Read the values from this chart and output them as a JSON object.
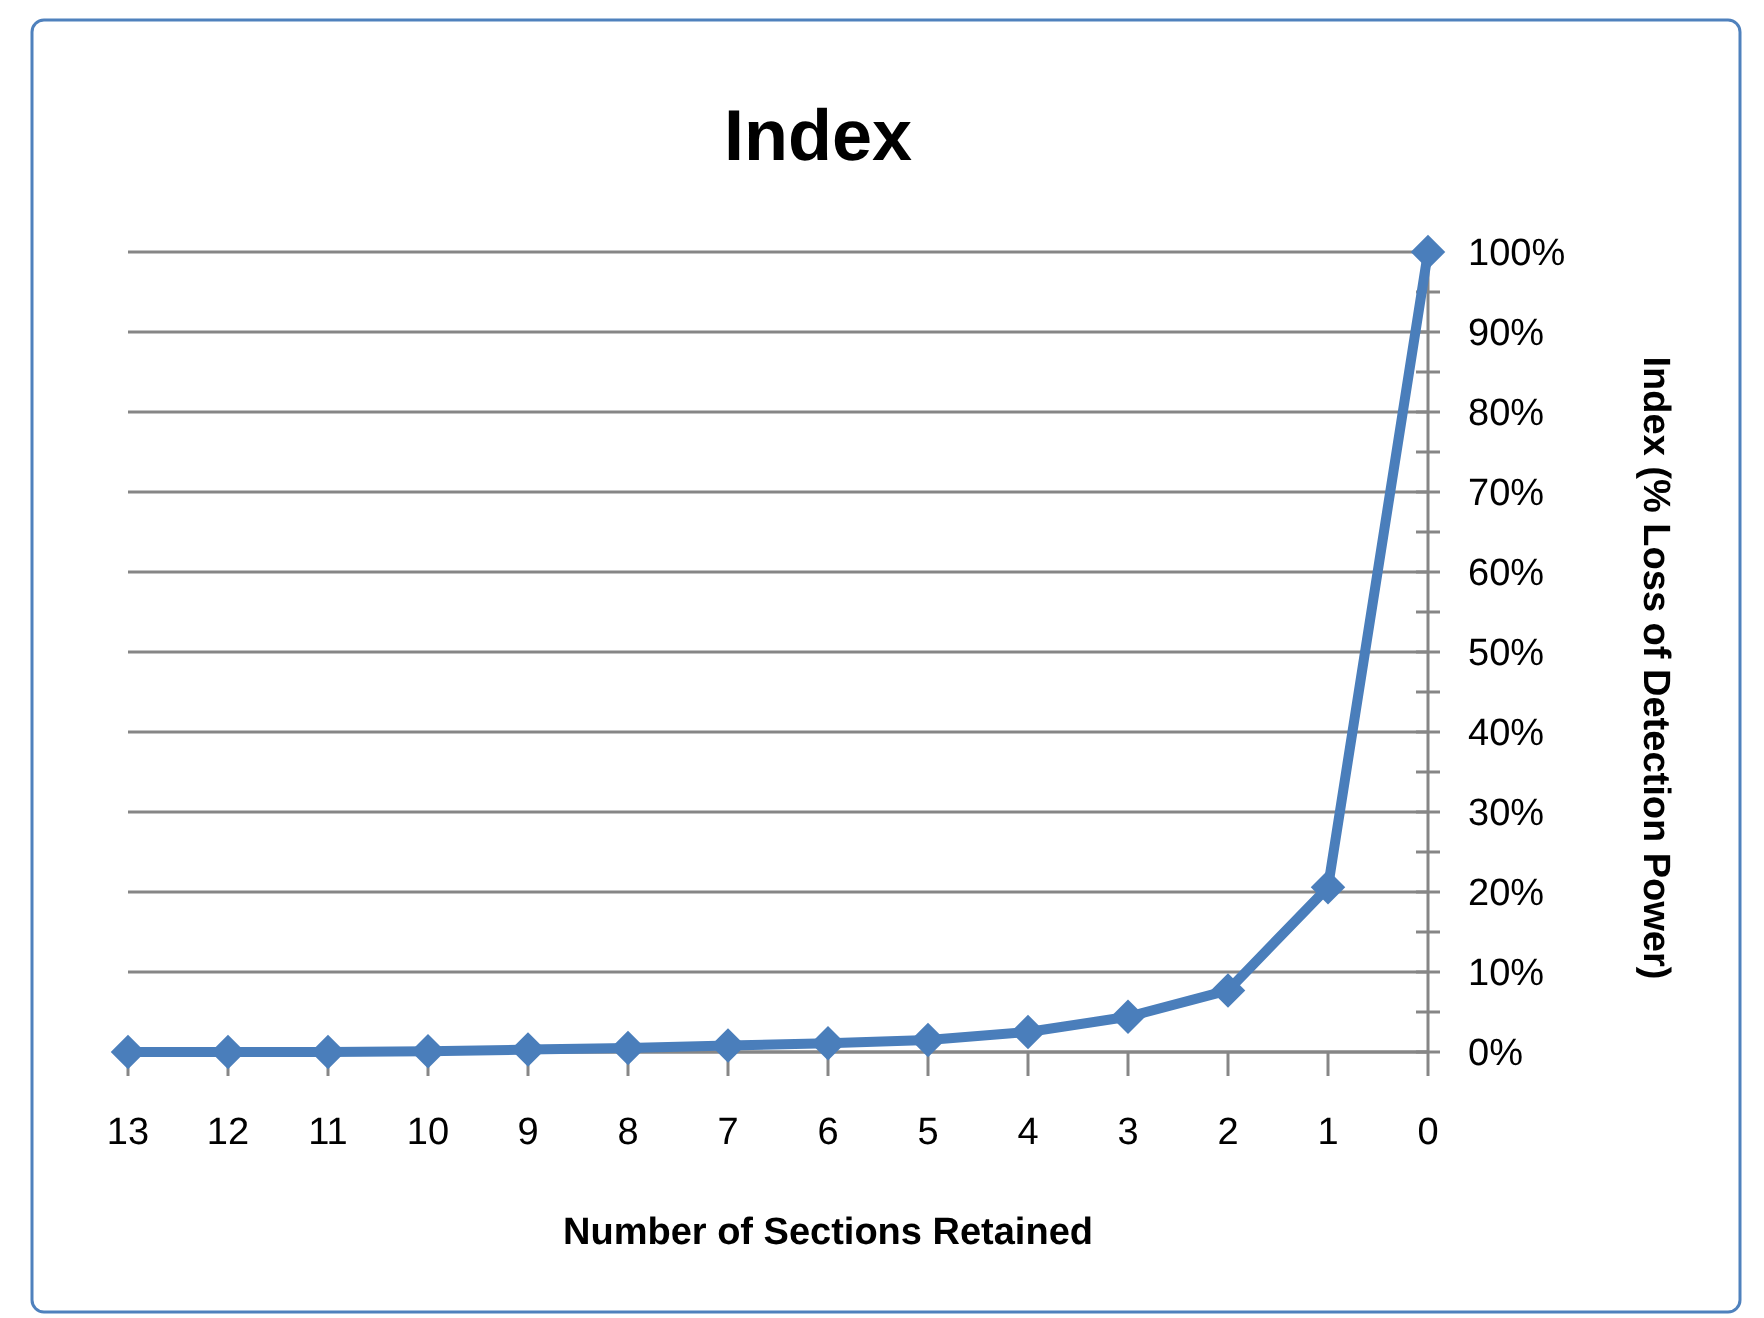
{
  "chart_data": {
    "type": "line",
    "title": "Index",
    "xlabel": "Number of Sections Retained",
    "ylabel": "Index (% Loss of Detection Power)",
    "categories": [
      "13",
      "12",
      "11",
      "10",
      "9",
      "8",
      "7",
      "6",
      "5",
      "4",
      "3",
      "2",
      "1",
      "0"
    ],
    "series": [
      {
        "color": "#4a7ebb",
        "values": [
          0,
          0,
          0,
          0.1,
          0.3,
          0.5,
          0.8,
          1.1,
          1.5,
          2.5,
          4.4,
          7.7,
          20.6,
          100
        ]
      }
    ],
    "ylim": [
      0,
      100
    ],
    "yticks": [
      {
        "value": 0,
        "label": "0%"
      },
      {
        "value": 5,
        "label": null
      },
      {
        "value": 10,
        "label": "10%"
      },
      {
        "value": 15,
        "label": null
      },
      {
        "value": 20,
        "label": "20%"
      },
      {
        "value": 25,
        "label": null
      },
      {
        "value": 30,
        "label": "30%"
      },
      {
        "value": 35,
        "label": null
      },
      {
        "value": 40,
        "label": "40%"
      },
      {
        "value": 45,
        "label": null
      },
      {
        "value": 50,
        "label": "50%"
      },
      {
        "value": 55,
        "label": null
      },
      {
        "value": 60,
        "label": "60%"
      },
      {
        "value": 65,
        "label": null
      },
      {
        "value": 70,
        "label": "70%"
      },
      {
        "value": 75,
        "label": null
      },
      {
        "value": 80,
        "label": "80%"
      },
      {
        "value": 85,
        "label": null
      },
      {
        "value": 90,
        "label": "90%"
      },
      {
        "value": 95,
        "label": null
      },
      {
        "value": 100,
        "label": "100%"
      }
    ],
    "grid": "y",
    "marker": "diamond",
    "line_style": "solid"
  }
}
